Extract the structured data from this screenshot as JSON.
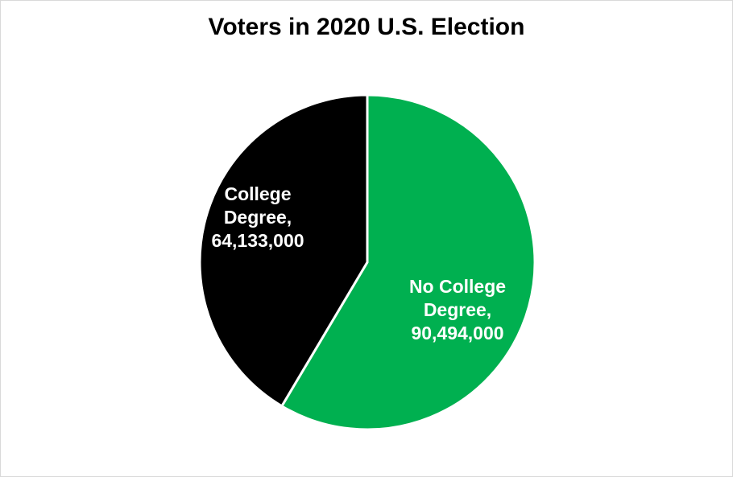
{
  "chart_data": {
    "type": "pie",
    "title": "Voters in 2020 U.S. Election",
    "slices": [
      {
        "label_lines": [
          "No College",
          "Degree,",
          "90,494,000"
        ],
        "value": 90494000,
        "color": "#00b050"
      },
      {
        "label_lines": [
          "College",
          "Degree,",
          "64,133,000"
        ],
        "value": 64133000,
        "color": "#000000"
      }
    ],
    "start_angle_deg": 0,
    "direction": "clockwise",
    "slice_border_color": "#ffffff",
    "legend": "none"
  }
}
